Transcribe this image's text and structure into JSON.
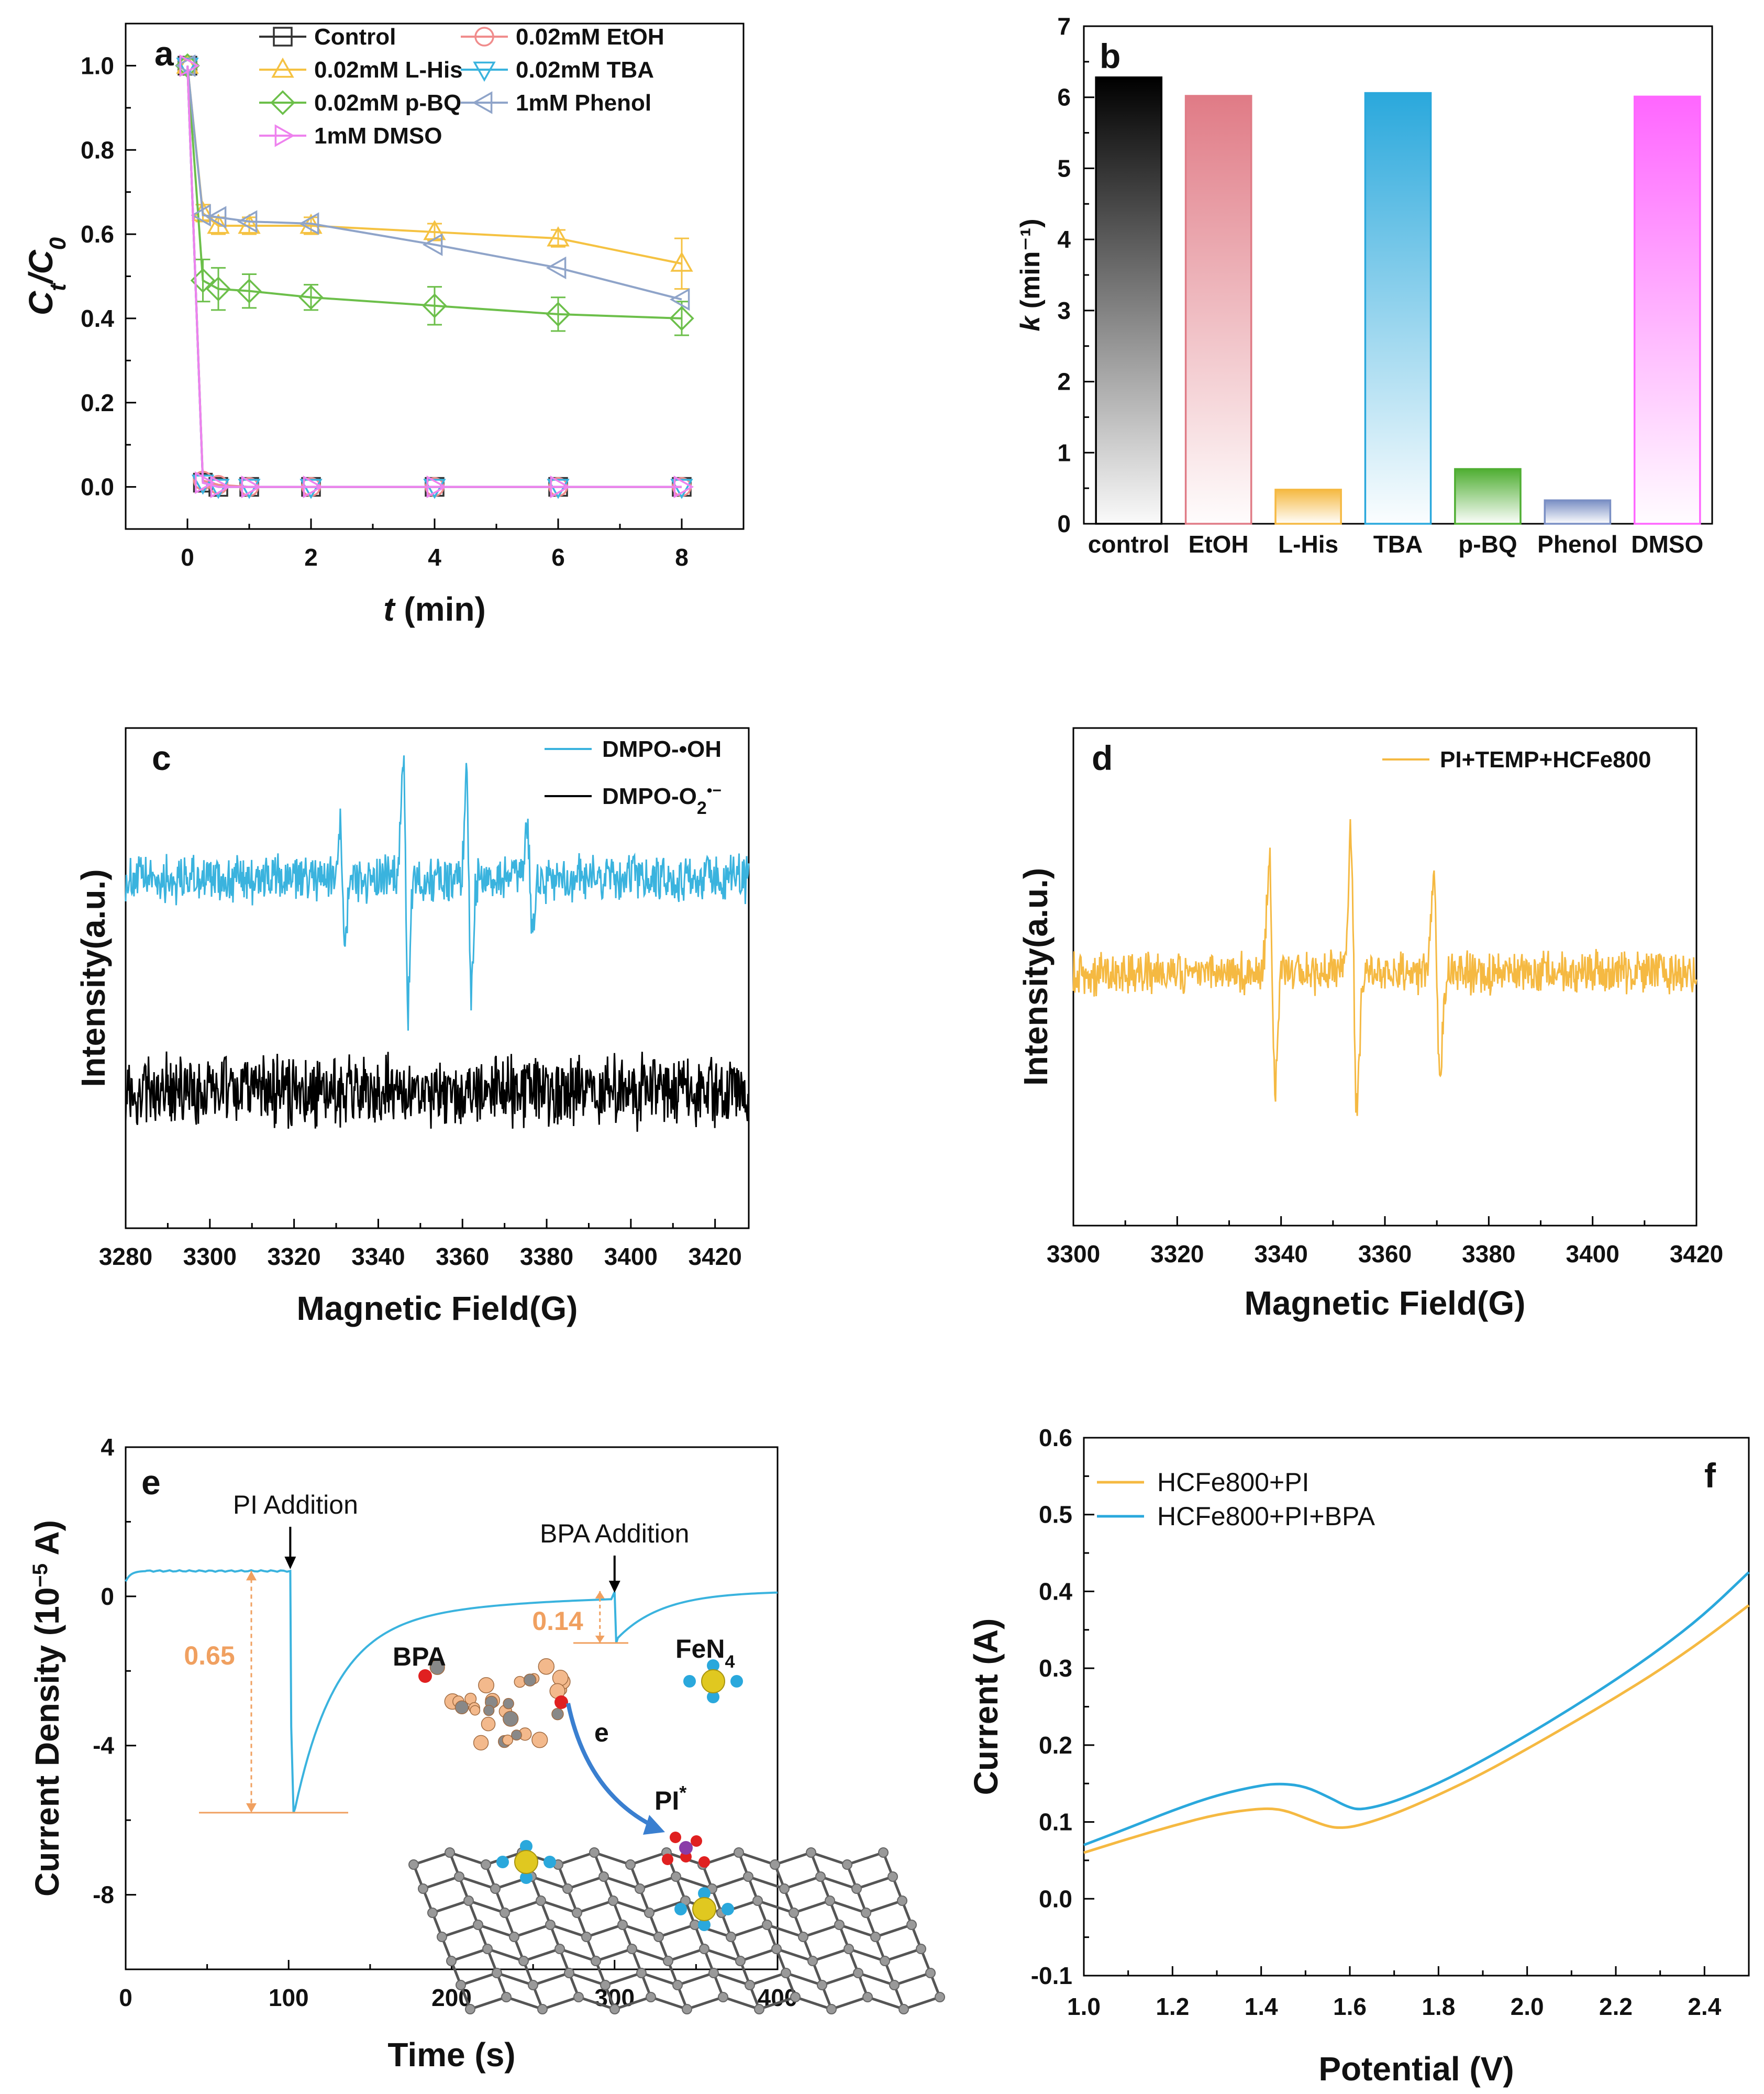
{
  "chart_data": [
    {
      "id": "a",
      "type": "line",
      "panel_label": "a",
      "xlabel_var": "t",
      "xlabel_unit": " (min)",
      "ylabel": "Ct/C0",
      "xlim": [
        -1,
        9
      ],
      "ylim": [
        -0.1,
        1.1
      ],
      "xticks": [
        "0",
        "2",
        "4",
        "6",
        "8"
      ],
      "yticks": [
        "0.0",
        "0.2",
        "0.4",
        "0.6",
        "0.8",
        "1.0"
      ],
      "series": [
        {
          "name": "Control",
          "color": "#333333",
          "marker": "square",
          "x": [
            0,
            0.25,
            0.5,
            1,
            2,
            4,
            6,
            8
          ],
          "y": [
            1.0,
            0.01,
            0.0,
            0.0,
            0.0,
            0.0,
            0.0,
            0.0
          ]
        },
        {
          "name": "0.02mM EtOH",
          "color": "#f08c8c",
          "marker": "circle",
          "x": [
            0,
            0.25,
            0.5,
            1,
            2,
            4,
            6,
            8
          ],
          "y": [
            1.0,
            0.015,
            0.005,
            0.0,
            0.0,
            0.0,
            0.0,
            0.0
          ]
        },
        {
          "name": "0.02mM L-His",
          "color": "#f5c242",
          "marker": "triangle-up",
          "x": [
            0,
            0.25,
            0.5,
            1,
            2,
            4,
            6,
            8
          ],
          "y": [
            1.0,
            0.65,
            0.62,
            0.62,
            0.62,
            0.605,
            0.59,
            0.53
          ],
          "err": [
            0,
            0.02,
            0.02,
            0.02,
            0.02,
            0.02,
            0.02,
            0.06
          ]
        },
        {
          "name": "0.02mM TBA",
          "color": "#3ab3de",
          "marker": "triangle-down",
          "x": [
            0,
            0.25,
            0.5,
            1,
            2,
            4,
            6,
            8
          ],
          "y": [
            1.0,
            0.01,
            0.0,
            0.0,
            0.0,
            0.0,
            0.0,
            0.0
          ]
        },
        {
          "name": "0.02mM p-BQ",
          "color": "#6cbf4a",
          "marker": "diamond",
          "x": [
            0,
            0.25,
            0.5,
            1,
            2,
            4,
            6,
            8
          ],
          "y": [
            1.0,
            0.49,
            0.47,
            0.465,
            0.45,
            0.43,
            0.41,
            0.4
          ],
          "err": [
            0,
            0.05,
            0.05,
            0.04,
            0.03,
            0.045,
            0.04,
            0.04
          ]
        },
        {
          "name": "1mM Phenol",
          "color": "#8fa4c9",
          "marker": "triangle-left",
          "x": [
            0,
            0.25,
            0.5,
            1,
            2,
            4,
            6,
            8
          ],
          "y": [
            1.0,
            0.645,
            0.64,
            0.63,
            0.625,
            0.575,
            0.52,
            0.445
          ]
        },
        {
          "name": "1mM DMSO",
          "color": "#ee82ee",
          "marker": "triangle-right",
          "x": [
            0,
            0.25,
            0.5,
            1,
            2,
            4,
            6,
            8
          ],
          "y": [
            1.0,
            0.01,
            0.0,
            0.0,
            0.0,
            0.0,
            0.0,
            0.0
          ]
        }
      ]
    },
    {
      "id": "b",
      "type": "bar",
      "panel_label": "b",
      "ylabel": "k (min⁻¹)",
      "ylim": [
        0,
        7
      ],
      "yticks": [
        "0",
        "1",
        "2",
        "3",
        "4",
        "5",
        "6",
        "7"
      ],
      "categories": [
        "control",
        "EtOH",
        "L-His",
        "TBA",
        "p-BQ",
        "Phenol",
        "DMSO"
      ],
      "values": [
        6.28,
        6.02,
        0.48,
        6.06,
        0.77,
        0.33,
        6.01
      ],
      "colors": [
        "#000000",
        "#e07b86",
        "#f5b942",
        "#2aa8dc",
        "#4fae32",
        "#7a8fc4",
        "#ff66ff"
      ]
    },
    {
      "id": "c",
      "type": "line",
      "panel_label": "c",
      "xlabel": "Magnetic Field(G)",
      "ylabel": "Intensity(a.u.)",
      "xlim": [
        3280,
        3428
      ],
      "xticks": [
        "3280",
        "3300",
        "3320",
        "3340",
        "3360",
        "3380",
        "3400",
        "3420"
      ],
      "series": [
        {
          "name": "DMPO-•OH",
          "color": "#3ab3de",
          "offset": 1.0,
          "peaks": [
            3331.5,
            3346.5,
            3361.5,
            3376
          ],
          "amps": [
            0.85,
            1.9,
            1.6,
            0.8
          ]
        },
        {
          "name": "DMPO-O2•−",
          "color": "#000000",
          "offset": -1.25,
          "peaks": [],
          "amps": []
        }
      ]
    },
    {
      "id": "d",
      "type": "line",
      "panel_label": "d",
      "xlabel": "Magnetic Field(G)",
      "ylabel": "Intensity(a.u.)",
      "xlim": [
        3300,
        3420
      ],
      "xticks": [
        "3300",
        "3320",
        "3340",
        "3360",
        "3380",
        "3400",
        "3420"
      ],
      "series": [
        {
          "name": "PI+TEMP+HCFe800",
          "color": "#f5b942",
          "offset": 0,
          "peaks": [
            3338.3,
            3354,
            3370
          ],
          "amps": [
            1.9,
            2.35,
            1.7
          ]
        }
      ]
    },
    {
      "id": "e",
      "type": "line",
      "panel_label": "e",
      "xlabel": "Time (s)",
      "ylabel": "Current Density (10⁻⁵ A)",
      "xlim": [
        0,
        400
      ],
      "ylim": [
        -10,
        4
      ],
      "xticks": [
        "0",
        "100",
        "200",
        "300",
        "400"
      ],
      "yticks": [
        "-8",
        "-4",
        "0",
        "4"
      ],
      "series": [
        {
          "name": "current",
          "color": "#3ab3de"
        }
      ],
      "annotations": {
        "pi_addition": "PI Addition",
        "bpa_addition": "BPA Addition",
        "delta1": "0.65",
        "delta2": "0.14",
        "pi_time": 101,
        "bpa_time": 300
      },
      "inset_labels": {
        "bpa": "BPA",
        "fen4": "FeN4",
        "e": "e",
        "pi": "PI*"
      }
    },
    {
      "id": "f",
      "type": "line",
      "panel_label": "f",
      "xlabel": "Potential (V)",
      "ylabel": "Current (A)",
      "xlim": [
        1.0,
        2.5
      ],
      "ylim": [
        -0.1,
        0.6
      ],
      "xticks": [
        "1.0",
        "1.2",
        "1.4",
        "1.6",
        "1.8",
        "2.0",
        "2.2",
        "2.4"
      ],
      "yticks": [
        "-0.1",
        "0.0",
        "0.1",
        "0.2",
        "0.3",
        "0.4",
        "0.5",
        "0.6"
      ],
      "series": [
        {
          "name": "HCFe800+PI",
          "color": "#f5b942",
          "x": [
            1.0,
            1.1,
            1.2,
            1.3,
            1.4,
            1.45,
            1.5,
            1.55,
            1.58,
            1.62,
            1.7,
            1.8,
            1.9,
            2.0,
            2.1,
            2.2,
            2.3,
            2.4,
            2.5
          ],
          "y": [
            0.06,
            0.078,
            0.095,
            0.11,
            0.118,
            0.116,
            0.105,
            0.094,
            0.092,
            0.095,
            0.11,
            0.135,
            0.163,
            0.195,
            0.228,
            0.262,
            0.298,
            0.338,
            0.382
          ]
        },
        {
          "name": "HCFe800+PI+BPA",
          "color": "#2aa8dc",
          "x": [
            1.0,
            1.1,
            1.2,
            1.3,
            1.4,
            1.45,
            1.5,
            1.55,
            1.6,
            1.63,
            1.7,
            1.8,
            1.9,
            2.0,
            2.1,
            2.2,
            2.3,
            2.4,
            2.5
          ],
          "y": [
            0.07,
            0.092,
            0.115,
            0.135,
            0.148,
            0.15,
            0.146,
            0.133,
            0.118,
            0.116,
            0.126,
            0.15,
            0.18,
            0.213,
            0.248,
            0.285,
            0.325,
            0.37,
            0.425
          ]
        }
      ]
    }
  ]
}
